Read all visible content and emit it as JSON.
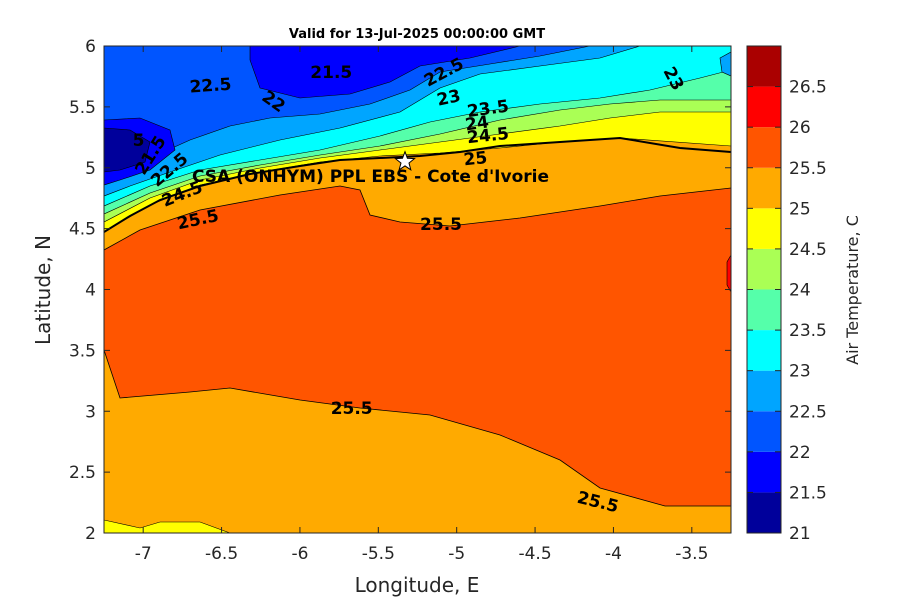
{
  "chart_data": {
    "type": "heatmap",
    "title": "Valid for 13-Jul-2025 00:00:00 GMT",
    "xlabel": "Longitude, E",
    "ylabel": "Latitude, N",
    "xlim": [
      -7.25,
      -3.25
    ],
    "ylim": [
      2,
      6
    ],
    "x_ticks": [
      -7,
      -6.5,
      -6,
      -5.5,
      -5,
      -4.5,
      -4,
      -3.5
    ],
    "y_ticks": [
      2,
      2.5,
      3,
      3.5,
      4,
      4.5,
      5,
      5.5,
      6
    ],
    "colorbar": {
      "label": "Air Temperature, C",
      "levels": [
        21,
        21.5,
        22,
        22.5,
        23,
        23.5,
        24,
        24.5,
        25,
        25.5,
        26,
        26.5
      ],
      "colors": [
        "#00009b",
        "#0000ff",
        "#0055ff",
        "#00a5ff",
        "#00ffff",
        "#55ffaa",
        "#aaff55",
        "#ffff00",
        "#ffaa00",
        "#ff5500",
        "#ff0000",
        "#aa0000"
      ]
    },
    "location_marker": {
      "label": "CSA (ONHYM) PPL EBS  - Cote d'Ivorie",
      "lon": -5.33,
      "lat": 5.05
    },
    "contour_labels": [
      {
        "text": "21.5",
        "lon": -5.8,
        "lat": 5.78,
        "angle": 0
      },
      {
        "text": "22.5",
        "lon": -6.57,
        "lat": 5.67,
        "angle": -4
      },
      {
        "text": "22",
        "lon": -6.17,
        "lat": 5.54,
        "angle": 35
      },
      {
        "text": "22.5",
        "lon": -5.08,
        "lat": 5.78,
        "angle": -28
      },
      {
        "text": "23",
        "lon": -5.05,
        "lat": 5.57,
        "angle": -12
      },
      {
        "text": "23",
        "lon": -3.62,
        "lat": 5.73,
        "angle": 62
      },
      {
        "text": "23.5",
        "lon": -4.8,
        "lat": 5.48,
        "angle": -8
      },
      {
        "text": "24",
        "lon": -4.87,
        "lat": 5.36,
        "angle": -8
      },
      {
        "text": "24.5",
        "lon": -4.8,
        "lat": 5.26,
        "angle": -6
      },
      {
        "text": "25",
        "lon": -4.88,
        "lat": 5.07,
        "angle": -6
      },
      {
        "text": "25.5",
        "lon": -5.1,
        "lat": 4.53,
        "angle": 0
      },
      {
        "text": "25.5",
        "lon": -5.67,
        "lat": 3.02,
        "angle": 0
      },
      {
        "text": "25.5",
        "lon": -4.1,
        "lat": 2.25,
        "angle": 14
      },
      {
        "text": "21.5",
        "lon": -6.95,
        "lat": 5.1,
        "angle": -58
      },
      {
        "text": "22.5",
        "lon": -6.83,
        "lat": 4.98,
        "angle": -40
      },
      {
        "text": "24.5",
        "lon": -6.75,
        "lat": 4.78,
        "angle": -22
      },
      {
        "text": "25.5",
        "lon": -6.65,
        "lat": 4.57,
        "angle": -12
      },
      {
        "text": "5",
        "lon": -7.03,
        "lat": 5.22,
        "angle": 0
      }
    ]
  }
}
